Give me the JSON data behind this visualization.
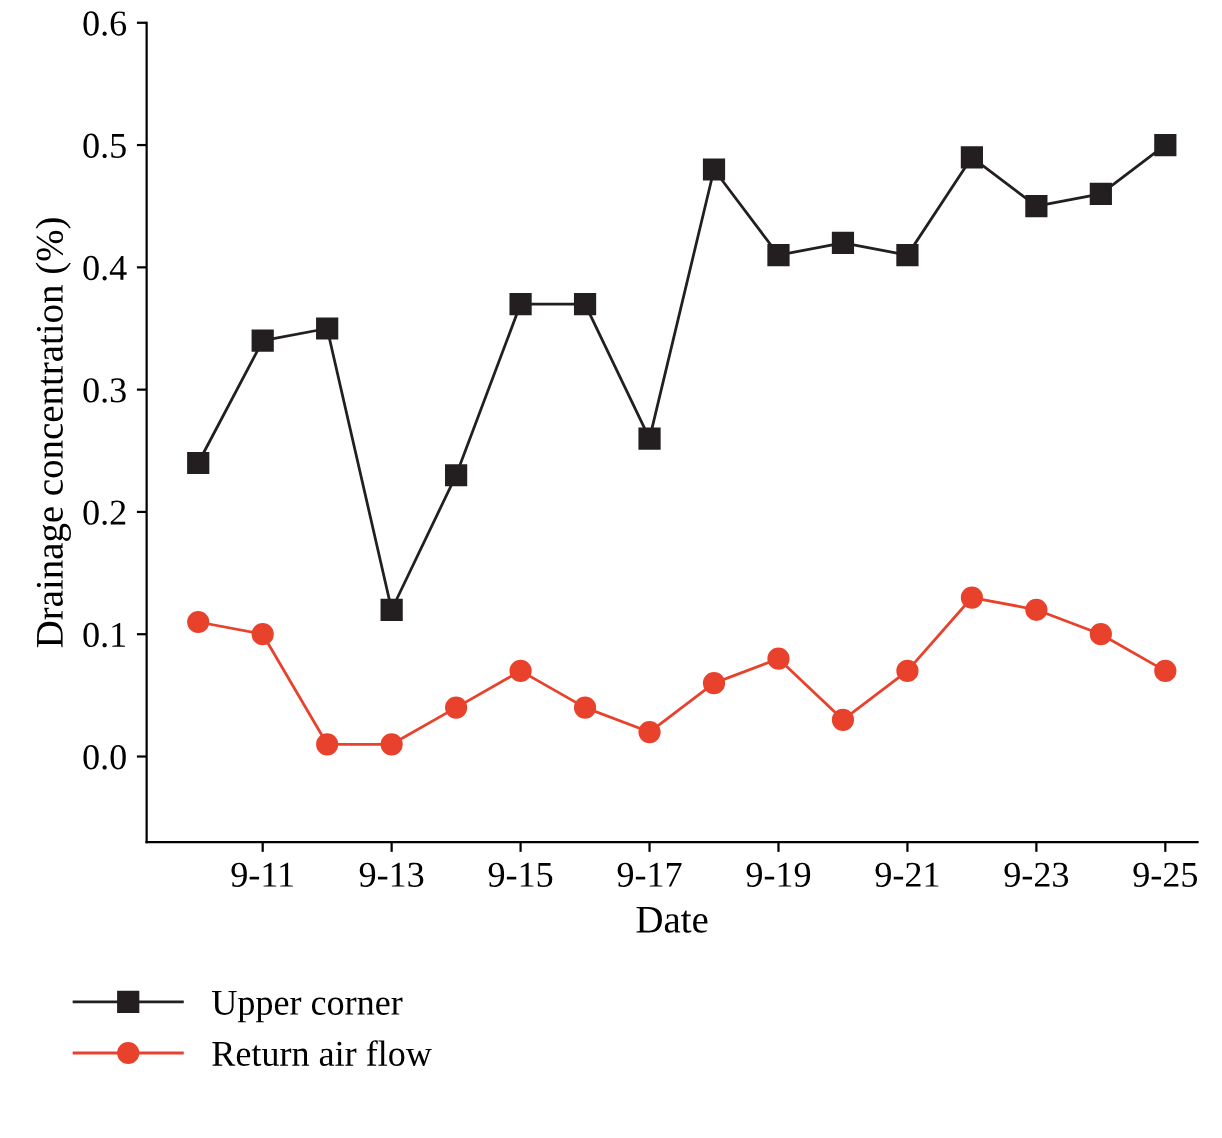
{
  "chart_data": {
    "type": "line",
    "xlabel": "Date",
    "ylabel": "Drainage concentration (%)",
    "categories": [
      null,
      "9-11",
      null,
      "9-13",
      null,
      "9-15",
      null,
      "9-17",
      null,
      "9-19",
      null,
      "9-21",
      null,
      "9-23",
      null,
      "9-25"
    ],
    "series": [
      {
        "name": "Upper corner",
        "color": "#231f20",
        "marker": "square",
        "values": [
          0.24,
          0.34,
          0.35,
          0.12,
          0.23,
          0.37,
          0.37,
          0.26,
          0.48,
          0.41,
          0.42,
          0.41,
          0.49,
          0.45,
          0.46,
          0.5
        ]
      },
      {
        "name": "Return air flow",
        "color": "#e8412c",
        "marker": "circle",
        "values": [
          0.11,
          0.1,
          0.01,
          0.01,
          0.04,
          0.07,
          0.04,
          0.02,
          0.06,
          0.08,
          0.03,
          0.07,
          0.13,
          0.12,
          0.1,
          0.07
        ]
      }
    ],
    "ylim": [
      -0.07,
      0.6
    ],
    "yticks": [
      {
        "value": 0,
        "label": "0.0"
      },
      0.1,
      0.2,
      0.3,
      0.4,
      0.5,
      0.6
    ],
    "grid": false,
    "legend": "bottom left",
    "line_style": "solid"
  }
}
